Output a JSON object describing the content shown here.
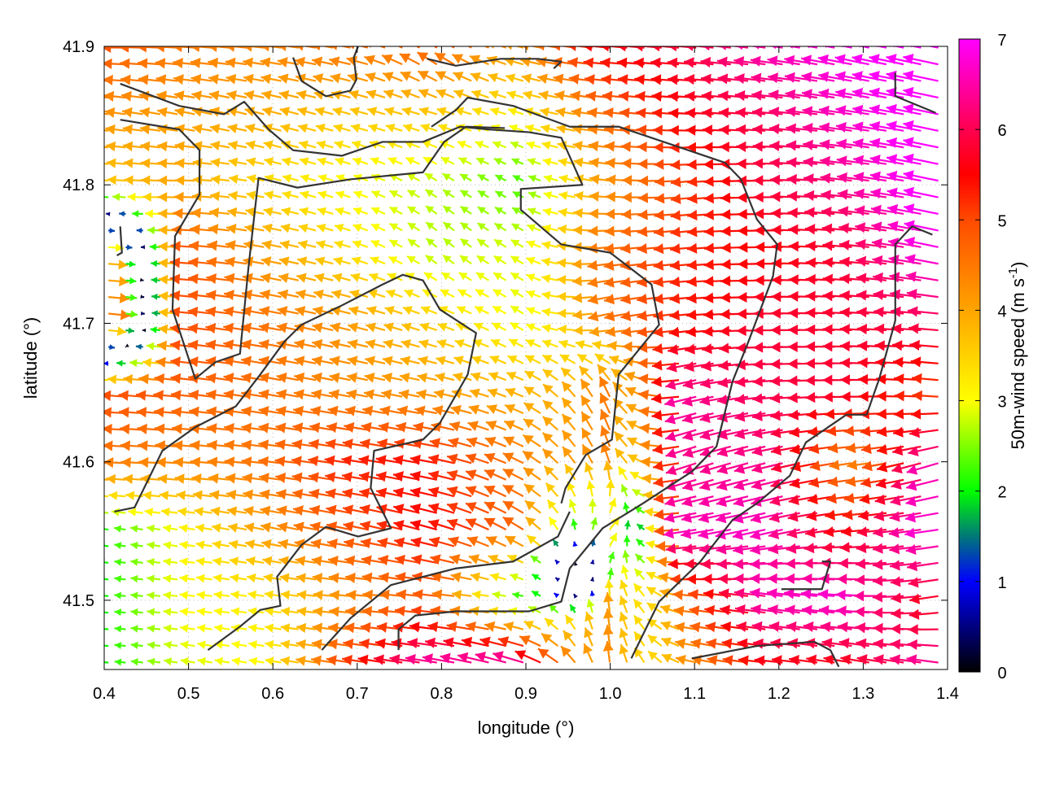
{
  "chart_data": {
    "type": "vector-field",
    "xlabel": "longitude (°)",
    "ylabel": "latitude (°)",
    "xlim": [
      0.4,
      1.4
    ],
    "ylim": [
      41.45,
      41.9
    ],
    "xticks": [
      "0.4",
      "0.5",
      "0.6",
      "0.7",
      "0.8",
      "0.9",
      "1.0",
      "1.1",
      "1.2",
      "1.3",
      "1.4"
    ],
    "yticks": [
      "41.5",
      "41.6",
      "41.7",
      "41.8",
      "41.9"
    ],
    "grid": true,
    "colorbar": {
      "label_main": "50m-wind speed (m s",
      "label_sup": "-1",
      "label_end": ")",
      "range": [
        0,
        7
      ],
      "ticks": [
        "0",
        "1",
        "2",
        "3",
        "4",
        "5",
        "6",
        "7"
      ],
      "palette": [
        {
          "v": 0,
          "color": "#000000"
        },
        {
          "v": 1,
          "color": "#0000ff"
        },
        {
          "v": 1.5,
          "color": "#007878"
        },
        {
          "v": 2,
          "color": "#00ff00"
        },
        {
          "v": 3,
          "color": "#ffff00"
        },
        {
          "v": 4,
          "color": "#ffa500"
        },
        {
          "v": 5,
          "color": "#ff4a00"
        },
        {
          "v": 5.5,
          "color": "#ff0000"
        },
        {
          "v": 6,
          "color": "#ff0050"
        },
        {
          "v": 7,
          "color": "#ff00ff"
        }
      ]
    },
    "vector_grid": {
      "lon": [
        0.4,
        0.5,
        0.6,
        0.7,
        0.8,
        0.9,
        1.0,
        1.1,
        1.2,
        1.3,
        1.4
      ],
      "lat": [
        41.9,
        41.85,
        41.8,
        41.75,
        41.7,
        41.65,
        41.6,
        41.55,
        41.5,
        41.45
      ],
      "uv_ms": [
        [
          [
            -5,
            0
          ],
          [
            -4.5,
            0.3
          ],
          [
            -4.3,
            0.5
          ],
          [
            -4.5,
            1
          ],
          [
            -4,
            3
          ],
          [
            -4,
            1
          ],
          [
            -5.5,
            0.5
          ],
          [
            -5.8,
            0.5
          ],
          [
            -6.5,
            1
          ],
          [
            -6.8,
            1.5
          ],
          [
            -7,
            1.5
          ]
        ],
        [
          [
            -4.2,
            0.5
          ],
          [
            -4,
            0.8
          ],
          [
            -3.8,
            1
          ],
          [
            -3.5,
            1
          ],
          [
            -3.5,
            1
          ],
          [
            -3,
            1
          ],
          [
            -4.5,
            0.5
          ],
          [
            -5.5,
            0.3
          ],
          [
            -6,
            0.5
          ],
          [
            -6.6,
            1
          ],
          [
            -7,
            1.5
          ]
        ],
        [
          [
            -3.5,
            0.3
          ],
          [
            -4,
            0
          ],
          [
            -3.3,
            0.8
          ],
          [
            -2.8,
            1
          ],
          [
            -2.3,
            1.5
          ],
          [
            -2,
            1
          ],
          [
            -4,
            0.5
          ],
          [
            -5,
            -0.5
          ],
          [
            -5.8,
            0
          ],
          [
            -6.3,
            0.8
          ],
          [
            -7,
            1.5
          ]
        ],
        [
          [
            4.2,
            -0.3
          ],
          [
            -5,
            0.3
          ],
          [
            -4,
            0.8
          ],
          [
            -3.2,
            1
          ],
          [
            -2,
            1.8
          ],
          [
            -2.5,
            1.5
          ],
          [
            -4.5,
            -0.5
          ],
          [
            -5.2,
            -0.5
          ],
          [
            -5.5,
            0
          ],
          [
            -5.8,
            0.5
          ],
          [
            -6.8,
            1.5
          ]
        ],
        [
          [
            5,
            -0.5
          ],
          [
            -5,
            0.5
          ],
          [
            -4.5,
            0.8
          ],
          [
            -4,
            1
          ],
          [
            -3.3,
            1.2
          ],
          [
            -2.5,
            1.5
          ],
          [
            -4.3,
            -1
          ],
          [
            -5.3,
            -0.5
          ],
          [
            -5.8,
            0
          ],
          [
            -5.8,
            0.3
          ],
          [
            -6,
            0.5
          ]
        ],
        [
          [
            -5,
            0.3
          ],
          [
            -4.8,
            0.5
          ],
          [
            -4.5,
            0.8
          ],
          [
            -4.2,
            0.8
          ],
          [
            -4,
            0.8
          ],
          [
            -3.5,
            1.5
          ],
          [
            -2,
            4
          ],
          [
            -6.3,
            -1.5
          ],
          [
            -6,
            -0.5
          ],
          [
            -5.8,
            0
          ],
          [
            -5,
            0.5
          ]
        ],
        [
          [
            -4.5,
            0.2
          ],
          [
            -4.3,
            0.3
          ],
          [
            -4.5,
            0.5
          ],
          [
            -5.2,
            0.8
          ],
          [
            -5.3,
            1
          ],
          [
            -4,
            2
          ],
          [
            -1.5,
            4.2
          ],
          [
            -6,
            -2
          ],
          [
            -6.2,
            -1.5
          ],
          [
            -4.2,
            -0.5
          ],
          [
            -6.5,
            -2
          ]
        ],
        [
          [
            -2,
            0.3
          ],
          [
            -3,
            0.5
          ],
          [
            -4,
            0.8
          ],
          [
            -4.8,
            1
          ],
          [
            -5.3,
            1.5
          ],
          [
            -4,
            2.5
          ],
          [
            2,
            2.5
          ],
          [
            -6.5,
            -1
          ],
          [
            -6.5,
            -1.5
          ],
          [
            -5.5,
            -0.5
          ],
          [
            -6.8,
            -1
          ]
        ],
        [
          [
            -2,
            0.2
          ],
          [
            -3,
            0.3
          ],
          [
            -3.2,
            0.5
          ],
          [
            -4.2,
            0.3
          ],
          [
            -4.8,
            0.5
          ],
          [
            -2,
            0.3
          ],
          [
            -0.5,
            4
          ],
          [
            -4.5,
            0.5
          ],
          [
            -6.5,
            1
          ],
          [
            -6.8,
            0.5
          ],
          [
            -5.5,
            -1
          ]
        ],
        [
          [
            -2,
            0.1
          ],
          [
            -2.8,
            0.5
          ],
          [
            -3,
            0.5
          ],
          [
            -5,
            0.8
          ],
          [
            -6.5,
            1
          ],
          [
            -6.5,
            2
          ],
          [
            -0.5,
            4.3
          ],
          [
            -4,
            1
          ],
          [
            -5.5,
            0.5
          ],
          [
            -5.5,
            1
          ],
          [
            -6.5,
            1
          ]
        ]
      ]
    },
    "coastlines": [
      [
        [
          0.419,
          41.873
        ],
        [
          0.489,
          41.857
        ],
        [
          0.542,
          41.851
        ],
        [
          0.566,
          41.86
        ],
        [
          0.595,
          41.84
        ],
        [
          0.624,
          41.825
        ],
        [
          0.682,
          41.821
        ],
        [
          0.73,
          41.831
        ],
        [
          0.778,
          41.831
        ],
        [
          0.822,
          41.842
        ],
        [
          0.856,
          41.84
        ],
        [
          0.904,
          41.838
        ],
        [
          0.942,
          41.834
        ],
        [
          0.967,
          41.8
        ],
        [
          0.894,
          41.797
        ],
        [
          0.894,
          41.782
        ],
        [
          0.942,
          41.757
        ],
        [
          1.0,
          41.751
        ],
        [
          1.049,
          41.728
        ],
        [
          1.058,
          41.699
        ],
        [
          1.01,
          41.663
        ],
        [
          1.002,
          41.616
        ],
        [
          0.971,
          41.605
        ],
        [
          0.947,
          41.581
        ],
        [
          0.942,
          41.57
        ]
      ],
      [
        [
          0.419,
          41.847
        ],
        [
          0.489,
          41.84
        ],
        [
          0.513,
          41.825
        ],
        [
          0.513,
          41.793
        ],
        [
          0.484,
          41.763
        ],
        [
          0.481,
          41.71
        ],
        [
          0.508,
          41.66
        ],
        [
          0.532,
          41.672
        ],
        [
          0.561,
          41.678
        ],
        [
          0.571,
          41.74
        ],
        [
          0.583,
          41.805
        ],
        [
          0.629,
          41.798
        ],
        [
          0.692,
          41.804
        ],
        [
          0.778,
          41.809
        ],
        [
          0.803,
          41.831
        ],
        [
          0.829,
          41.842
        ],
        [
          0.875,
          41.841
        ]
      ],
      [
        [
          0.412,
          41.564
        ],
        [
          0.436,
          41.567
        ],
        [
          0.469,
          41.608
        ],
        [
          0.508,
          41.625
        ],
        [
          0.556,
          41.64
        ],
        [
          0.585,
          41.663
        ],
        [
          0.614,
          41.687
        ],
        [
          0.634,
          41.699
        ],
        [
          0.682,
          41.713
        ],
        [
          0.73,
          41.728
        ],
        [
          0.754,
          41.735
        ],
        [
          0.778,
          41.731
        ],
        [
          0.798,
          41.71
        ],
        [
          0.841,
          41.693
        ],
        [
          0.831,
          41.663
        ],
        [
          0.798,
          41.628
        ],
        [
          0.778,
          41.616
        ],
        [
          0.72,
          41.608
        ],
        [
          0.716,
          41.581
        ],
        [
          0.74,
          41.552
        ],
        [
          0.701,
          41.546
        ],
        [
          0.663,
          41.553
        ],
        [
          0.634,
          41.54
        ],
        [
          0.605,
          41.517
        ],
        [
          0.609,
          41.496
        ],
        [
          0.585,
          41.493
        ],
        [
          0.561,
          41.481
        ],
        [
          0.523,
          41.464
        ]
      ],
      [
        [
          0.658,
          41.464
        ],
        [
          0.692,
          41.487
        ],
        [
          0.74,
          41.511
        ],
        [
          0.817,
          41.523
        ],
        [
          0.885,
          41.528
        ],
        [
          0.938,
          41.546
        ],
        [
          0.952,
          41.564
        ]
      ],
      [
        [
          0.749,
          41.464
        ],
        [
          0.749,
          41.479
        ],
        [
          0.769,
          41.489
        ],
        [
          0.817,
          41.492
        ],
        [
          0.875,
          41.492
        ],
        [
          0.904,
          41.492
        ],
        [
          0.942,
          41.499
        ],
        [
          0.952,
          41.523
        ],
        [
          0.991,
          41.552
        ],
        [
          1.039,
          41.57
        ],
        [
          1.097,
          41.593
        ],
        [
          1.126,
          41.611
        ],
        [
          1.145,
          41.658
        ],
        [
          1.164,
          41.687
        ],
        [
          1.193,
          41.734
        ],
        [
          1.198,
          41.757
        ],
        [
          1.174,
          41.775
        ],
        [
          1.155,
          41.804
        ],
        [
          1.136,
          41.816
        ],
        [
          1.078,
          41.828
        ],
        [
          1.01,
          41.842
        ],
        [
          0.952,
          41.842
        ],
        [
          0.885,
          41.857
        ],
        [
          0.831,
          41.863
        ],
        [
          0.817,
          41.854
        ],
        [
          0.788,
          41.842
        ]
      ],
      [
        [
          1.025,
          41.458
        ],
        [
          1.058,
          41.499
        ],
        [
          1.107,
          41.528
        ],
        [
          1.145,
          41.558
        ],
        [
          1.174,
          41.57
        ],
        [
          1.213,
          41.59
        ],
        [
          1.232,
          41.614
        ],
        [
          1.28,
          41.634
        ],
        [
          1.304,
          41.634
        ],
        [
          1.319,
          41.66
        ],
        [
          1.338,
          41.702
        ],
        [
          1.338,
          41.757
        ],
        [
          1.358,
          41.77
        ],
        [
          1.382,
          41.764
        ]
      ],
      [
        [
          1.203,
          41.508
        ],
        [
          1.251,
          41.508
        ],
        [
          1.261,
          41.528
        ],
        [
          1.251,
          41.528
        ]
      ],
      [
        [
          1.097,
          41.458
        ],
        [
          1.174,
          41.467
        ],
        [
          1.242,
          41.47
        ],
        [
          1.261,
          41.464
        ],
        [
          1.271,
          41.452
        ]
      ],
      [
        [
          0.624,
          41.892
        ],
        [
          0.634,
          41.875
        ],
        [
          0.663,
          41.864
        ],
        [
          0.692,
          41.868
        ],
        [
          0.699,
          41.876
        ],
        [
          0.696,
          41.892
        ],
        [
          0.701,
          41.9
        ]
      ],
      [
        [
          0.783,
          41.891
        ],
        [
          0.817,
          41.886
        ],
        [
          0.87,
          41.891
        ],
        [
          0.914,
          41.891
        ],
        [
          0.942,
          41.889
        ],
        [
          0.933,
          41.884
        ]
      ],
      [
        [
          1.338,
          41.881
        ],
        [
          1.338,
          41.864
        ],
        [
          1.386,
          41.852
        ]
      ],
      [
        [
          0.419,
          41.77
        ],
        [
          0.421,
          41.751
        ],
        [
          0.415,
          41.749
        ]
      ]
    ]
  }
}
